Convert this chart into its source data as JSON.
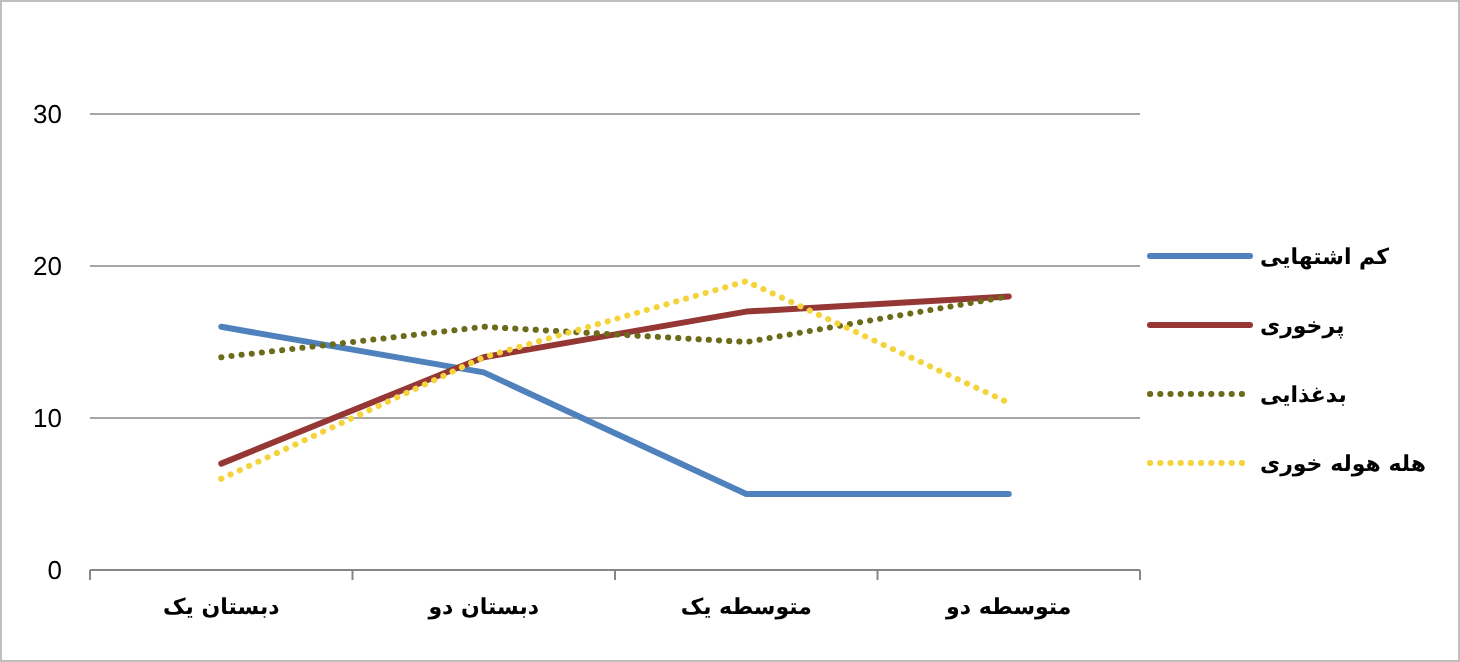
{
  "chart_data": {
    "type": "line",
    "categories": [
      "دبستان یک",
      "دبستان دو",
      "متوسطه یک",
      "متوسطه دو"
    ],
    "series": [
      {
        "name": "کم اشتهایی",
        "color": "#4f81bd",
        "values": [
          16,
          13,
          5,
          5
        ],
        "line_style": "solid"
      },
      {
        "name": "پرخوری",
        "color": "#953735",
        "values": [
          7,
          14,
          17,
          18
        ],
        "line_style": "solid"
      },
      {
        "name": "بدغذایی",
        "color": "#6b6b1a",
        "values": [
          14,
          16,
          15,
          18
        ],
        "line_style": "dotted"
      },
      {
        "name": "هله هوله خوری",
        "color": "#f5d33a",
        "values": [
          6,
          14,
          19,
          11
        ],
        "line_style": "dotted"
      }
    ],
    "ylim": [
      0,
      30
    ],
    "yticks": [
      0,
      10,
      20,
      30
    ],
    "grid": "y",
    "legend": "right"
  }
}
